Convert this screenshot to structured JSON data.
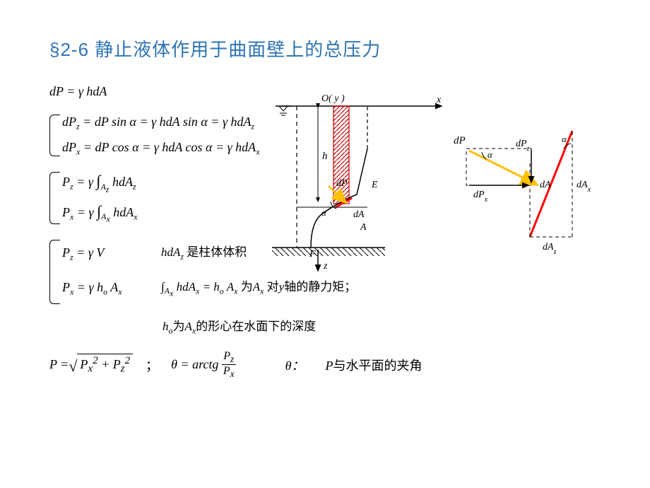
{
  "title": "§2-6   静止液体作用于曲面壁上的总压力",
  "eq1": "dP = γ hdA",
  "brace1": {
    "line1": "dPz = dP sin α = γ hdA sin α = γ hdAz",
    "line1_html": "dP<sub>z</sub> = dP sin α = γ hdA sin α = γ hdA<sub>z</sub>",
    "line2_html": "dP<sub>x</sub> = dP cos α = γ hdA cos α = γ hdA<sub>x</sub>"
  },
  "brace2": {
    "line1_pre": "P",
    "line1_sub": "z",
    "line1_mid": " = γ ",
    "line1_intsub": "A<sub>z</sub>",
    "line1_post": " hdA<sub>z</sub>",
    "line2_pre": "P",
    "line2_sub": "x",
    "line2_mid": " = γ ",
    "line2_intsub": "A<sub>x</sub>",
    "line2_post": " hdA<sub>x</sub>"
  },
  "brace3": {
    "line1_left": "P<sub>z</sub> = γ V",
    "line1_note": "hdA<sub>z</sub> <span class=\"cn\">是柱体体积</span>",
    "line2_left": "P<sub>x</sub> = γ h<sub>o</sub> A<sub>x</sub>",
    "line2_note_pre": "∫<sub>A<sub>x</sub></sub> hdA<sub>x</sub> = h<sub>o</sub> A<sub>x</sub> <span class=\"cn\">为</span>A<sub>x</sub> <span class=\"cn\">对</span>y<span class=\"cn\">轴的静力矩；</span>",
    "line3_note": "h<sub>o</sub><span class=\"cn\">为</span>A<sub>x</sub><span class=\"cn\">的形心在水面下的深度</span>"
  },
  "final": {
    "P_label": "P = ",
    "sqrt_inner": "P<sub>x</sub><sup>2</sup> + P<sub>z</sub><sup>2</sup>",
    "semicolon": "；",
    "theta_eq": "θ = arctg",
    "frac_num": "P<sub>z</sub>",
    "frac_den": "P<sub>x</sub>",
    "theta_label": "θ：",
    "desc": "P<span class=\"cn\">与水平面的夹角</span>"
  },
  "diagram": {
    "colors": {
      "black": "#000000",
      "red": "#ff0000",
      "yellow": "#ffc000",
      "hatch": "#c00000"
    },
    "labels": {
      "O": "O( y )",
      "x": "x",
      "z": "z",
      "h": "h",
      "dP": "dP",
      "dA": "dA",
      "alpha": "α",
      "E": "E",
      "F": "F",
      "A": "A",
      "dPz": "dP<tspan baseline-shift=\"sub\" font-size=\"10\">z</tspan>",
      "dPx": "dP<tspan baseline-shift=\"sub\" font-size=\"10\">x</tspan>",
      "dAx": "dA<tspan baseline-shift=\"sub\" font-size=\"10\">x</tspan>",
      "dAz": "dA<tspan baseline-shift=\"sub\" font-size=\"10\">z</tspan>"
    }
  }
}
